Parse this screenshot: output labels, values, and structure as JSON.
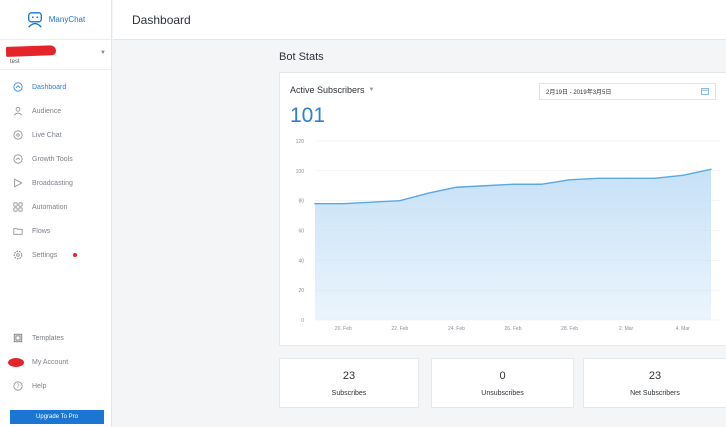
{
  "brand": {
    "name": "ManyChat"
  },
  "account": {
    "sub": "test"
  },
  "header": {
    "title": "Dashboard"
  },
  "nav": [
    {
      "id": "dashboard",
      "label": "Dashboard",
      "icon": "dashboard-icon",
      "active": true
    },
    {
      "id": "audience",
      "label": "Audience",
      "icon": "audience-icon"
    },
    {
      "id": "live-chat",
      "label": "Live Chat",
      "icon": "chat-icon"
    },
    {
      "id": "growth-tools",
      "label": "Growth Tools",
      "icon": "growth-icon"
    },
    {
      "id": "broadcasting",
      "label": "Broadcasting",
      "icon": "broadcast-icon"
    },
    {
      "id": "automation",
      "label": "Automation",
      "icon": "automation-icon"
    },
    {
      "id": "flows",
      "label": "Flows",
      "icon": "folder-icon"
    },
    {
      "id": "settings",
      "label": "Settings",
      "icon": "gear-icon",
      "alert": true
    }
  ],
  "nav_bottom": [
    {
      "id": "templates",
      "label": "Templates",
      "icon": "template-icon"
    },
    {
      "id": "my-account",
      "label": "My Account",
      "icon": "avatar"
    },
    {
      "id": "help",
      "label": "Help",
      "icon": "help-icon"
    }
  ],
  "upgrade_label": "Upgrade To Pro",
  "bot_stats": {
    "title": "Bot Stats",
    "metric_label": "Active Subscribers",
    "metric_value": "101",
    "date_range": "2月19日 - 2019年3月5日"
  },
  "chart_data": {
    "type": "area",
    "x": [
      "19 Feb",
      "20 Feb",
      "21 Feb",
      "22 Feb",
      "23 Feb",
      "24 Feb",
      "25 Feb",
      "26 Feb",
      "27 Feb",
      "28 Feb",
      "1 Mar",
      "2 Mar",
      "3 Mar",
      "4 Mar",
      "5 Mar"
    ],
    "values": [
      78,
      78,
      79,
      80,
      85,
      89,
      90,
      91,
      91,
      94,
      95,
      95,
      95,
      97,
      101
    ],
    "x_tick_labels": [
      "20. Feb",
      "22. Feb",
      "24. Feb",
      "26. Feb",
      "28. Feb",
      "2. Mar",
      "4. Mar"
    ],
    "x_tick_index": [
      1,
      3,
      5,
      7,
      9,
      11,
      13
    ],
    "y_ticks": [
      0,
      20,
      40,
      60,
      80,
      100,
      120
    ],
    "ylim": [
      0,
      120
    ],
    "grid": true,
    "line_color": "#5aa8e6",
    "fill_color": "#c6e1f7"
  },
  "summary": [
    {
      "id": "subscribes",
      "value": "23",
      "label": "Subscribes"
    },
    {
      "id": "unsubscribes",
      "value": "0",
      "label": "Unsubscribes"
    },
    {
      "id": "net-subscribers",
      "value": "23",
      "label": "Net Subscribers"
    }
  ]
}
